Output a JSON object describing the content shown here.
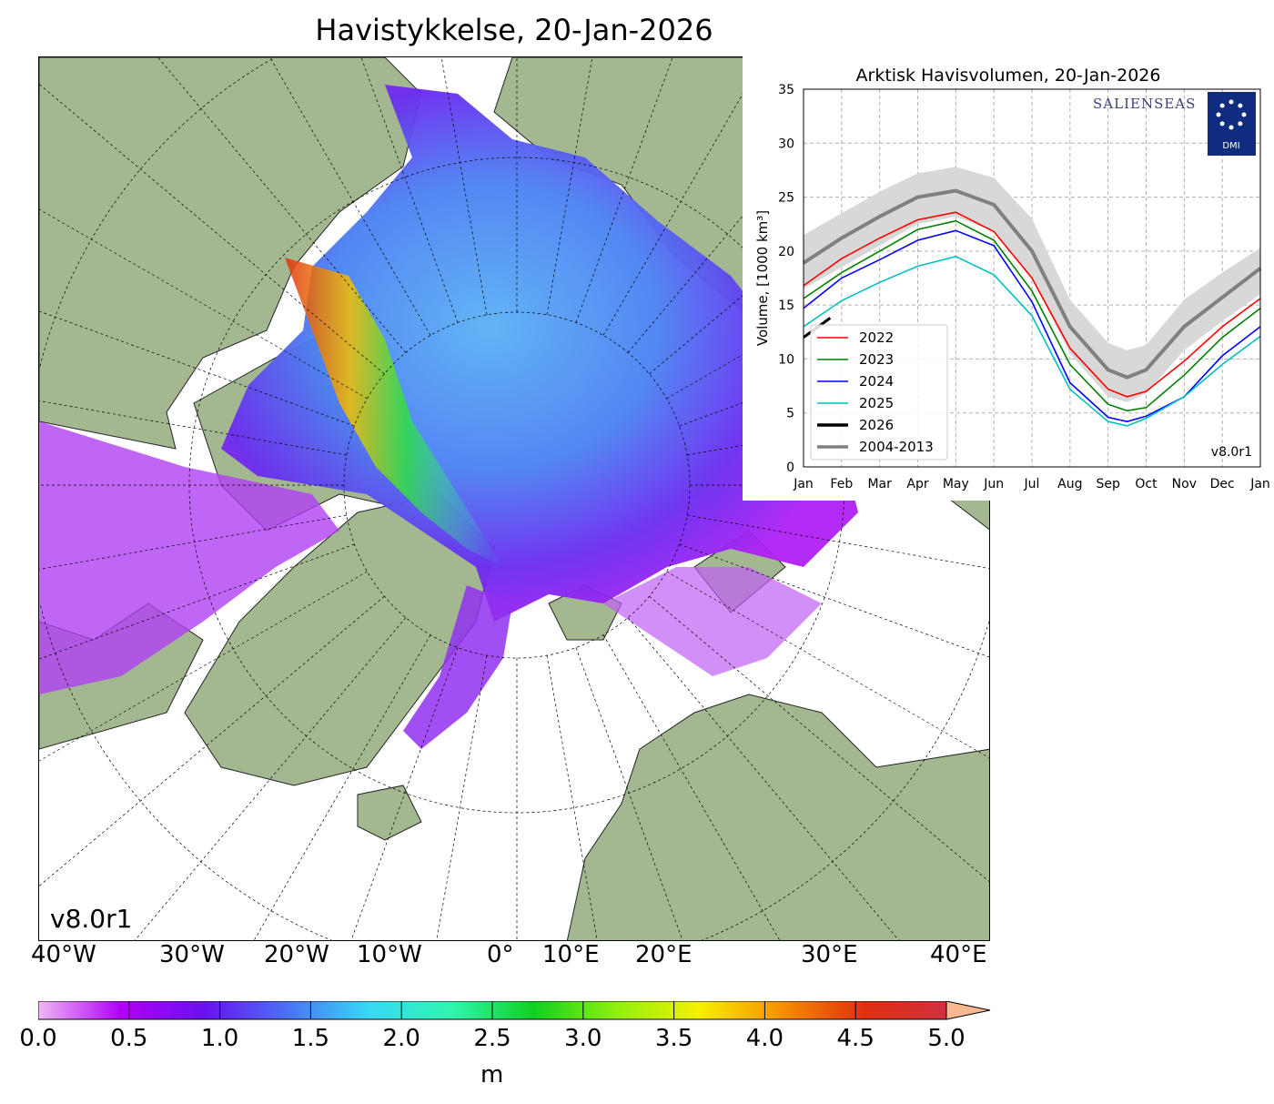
{
  "title": "Havistykkelse, 20-Jan-2026",
  "map": {
    "version_label": "v8.0r1",
    "land_color": "#a3b891",
    "lon_labels": [
      "40°W",
      "30°W",
      "20°W",
      "10°W",
      "0°",
      "10°E",
      "20°E",
      "30°E",
      "40°E"
    ]
  },
  "colorbar": {
    "ticks": [
      "0.0",
      "0.5",
      "1.0",
      "1.5",
      "2.0",
      "2.5",
      "3.0",
      "3.5",
      "4.0",
      "4.5",
      "5.0"
    ],
    "unit": "m",
    "range": [
      0,
      5
    ],
    "extend": "max",
    "colors": [
      "#f0b8f5",
      "#b100f5",
      "#6a10f0",
      "#4a70f5",
      "#38d8f5",
      "#30f5b0",
      "#10d020",
      "#90f010",
      "#f5f000",
      "#f59000",
      "#e03010",
      "#d03040",
      "#f8b890"
    ]
  },
  "chart_data": {
    "type": "line",
    "title": "Arktisk Havisvolumen, 20-Jan-2026",
    "ylabel": "Volume, [1000 km³]",
    "ylim": [
      0,
      35
    ],
    "yticks": [
      "0",
      "5",
      "10",
      "15",
      "20",
      "25",
      "30",
      "35"
    ],
    "xticks": [
      "Jan",
      "Feb",
      "Mar",
      "Apr",
      "May",
      "Jun",
      "Jul",
      "Aug",
      "Sep",
      "Oct",
      "Nov",
      "Dec",
      "Jan"
    ],
    "grid": true,
    "legend_placement": "lower-left",
    "logos": [
      "SALIENSEAS",
      "DMI"
    ],
    "version_label": "v8.0r1",
    "series": [
      {
        "name": "2022",
        "color": "#ff0000",
        "points": [
          [
            0,
            16.8
          ],
          [
            1,
            19.3
          ],
          [
            2,
            21.2
          ],
          [
            3,
            22.9
          ],
          [
            4,
            23.6
          ],
          [
            5,
            21.8
          ],
          [
            6,
            17.5
          ],
          [
            7,
            11
          ],
          [
            8,
            7.2
          ],
          [
            8.5,
            6.5
          ],
          [
            9,
            7.0
          ],
          [
            10,
            9.8
          ],
          [
            11,
            13
          ],
          [
            12,
            15.6
          ]
        ]
      },
      {
        "name": "2023",
        "color": "#008000",
        "points": [
          [
            0,
            15.6
          ],
          [
            1,
            18.0
          ],
          [
            2,
            20.0
          ],
          [
            3,
            22.0
          ],
          [
            4,
            22.8
          ],
          [
            5,
            21.0
          ],
          [
            6,
            16.3
          ],
          [
            7,
            9.5
          ],
          [
            8,
            5.8
          ],
          [
            8.5,
            5.2
          ],
          [
            9,
            5.5
          ],
          [
            10,
            8.5
          ],
          [
            11,
            12
          ],
          [
            12,
            14.7
          ]
        ]
      },
      {
        "name": "2024",
        "color": "#0000ff",
        "points": [
          [
            0,
            14.7
          ],
          [
            1,
            17.5
          ],
          [
            2,
            19.2
          ],
          [
            3,
            21.0
          ],
          [
            4,
            21.9
          ],
          [
            5,
            20.5
          ],
          [
            6,
            15.3
          ],
          [
            7,
            7.8
          ],
          [
            8,
            4.6
          ],
          [
            8.5,
            4.2
          ],
          [
            9,
            4.7
          ],
          [
            10,
            6.5
          ],
          [
            11,
            10.3
          ],
          [
            12,
            13
          ]
        ]
      },
      {
        "name": "2025",
        "color": "#00bfbf",
        "points": [
          [
            0,
            13
          ],
          [
            1,
            15.4
          ],
          [
            2,
            17.1
          ],
          [
            3,
            18.6
          ],
          [
            4,
            19.5
          ],
          [
            5,
            17.8
          ],
          [
            6,
            14
          ],
          [
            7,
            7.2
          ],
          [
            8,
            4.2
          ],
          [
            8.5,
            3.8
          ],
          [
            9,
            4.5
          ],
          [
            10,
            6.5
          ],
          [
            11,
            9.5
          ],
          [
            12,
            12.1
          ]
        ]
      },
      {
        "name": "2026",
        "color": "#000000",
        "points": [
          [
            0,
            12.0
          ],
          [
            0.7,
            13.8
          ]
        ]
      },
      {
        "name": "2004-2013",
        "color": "#808080",
        "points": [
          [
            0,
            18.9
          ],
          [
            1,
            21.2
          ],
          [
            2,
            23.2
          ],
          [
            3,
            25
          ],
          [
            4,
            25.6
          ],
          [
            5,
            24.3
          ],
          [
            6,
            20
          ],
          [
            7,
            13
          ],
          [
            8,
            9
          ],
          [
            8.5,
            8.3
          ],
          [
            9,
            9
          ],
          [
            10,
            13
          ],
          [
            11,
            15.7
          ],
          [
            12,
            18.4
          ]
        ],
        "band": [
          [
            0,
            16.5,
            21.5
          ],
          [
            1,
            18.5,
            23.5
          ],
          [
            2,
            20.5,
            25.5
          ],
          [
            3,
            22.5,
            27.2
          ],
          [
            4,
            23.2,
            27.8
          ],
          [
            5,
            21.8,
            26.8
          ],
          [
            6,
            17.5,
            23
          ],
          [
            7,
            10.5,
            15.5
          ],
          [
            8,
            6.5,
            11.5
          ],
          [
            8.5,
            6,
            10.8
          ],
          [
            9,
            6.8,
            11.3
          ],
          [
            10,
            10.8,
            15.5
          ],
          [
            11,
            13.5,
            18
          ],
          [
            12,
            16,
            20.3
          ]
        ]
      }
    ]
  }
}
